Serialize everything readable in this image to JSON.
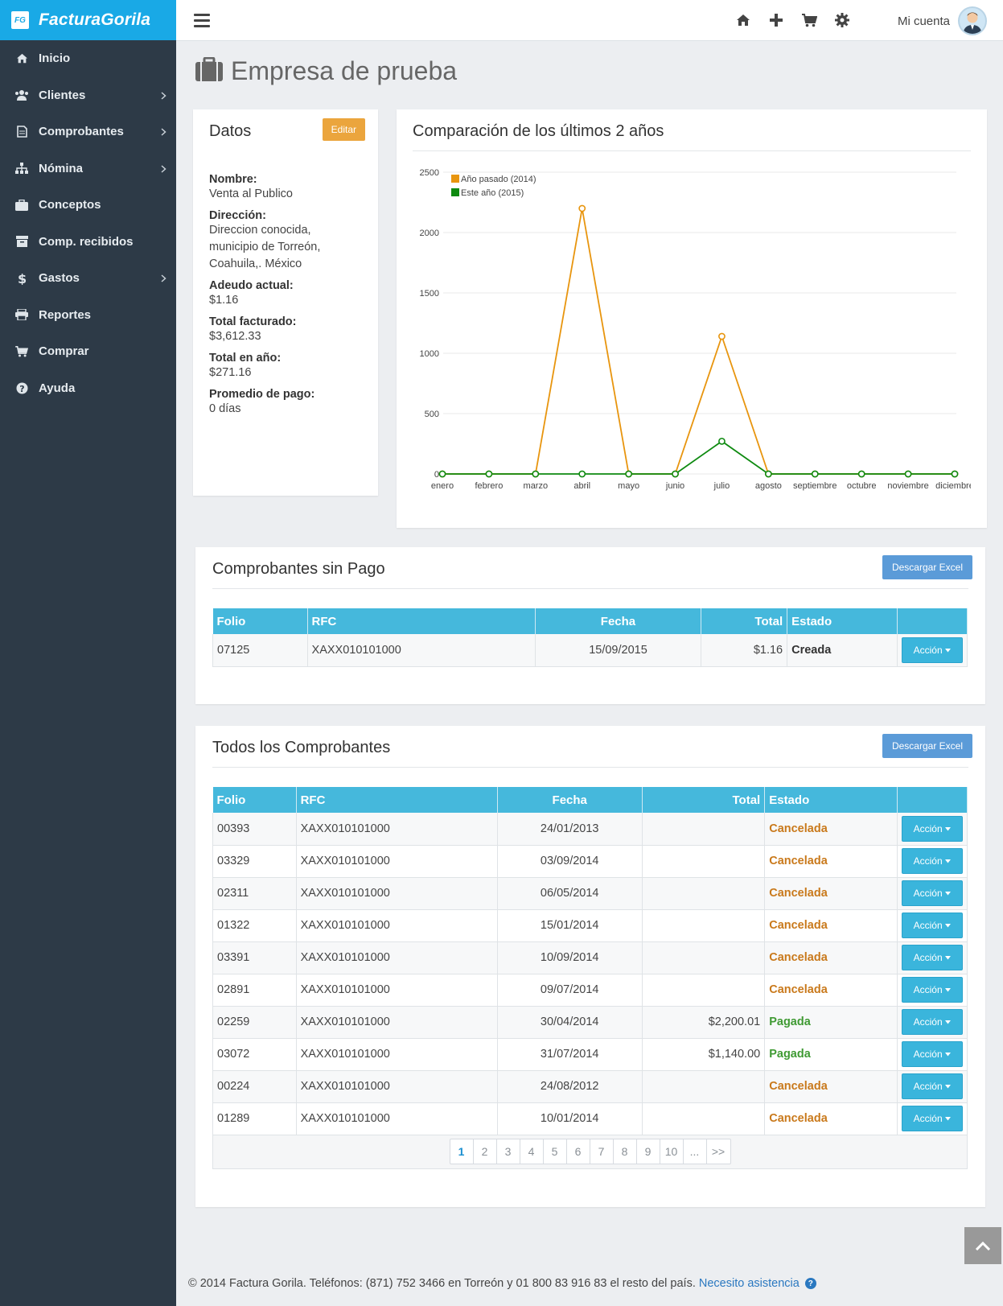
{
  "brand": {
    "logo": "FG",
    "name": "FacturaGorila"
  },
  "sidebar": {
    "items": [
      {
        "label": "Inicio",
        "icon": "home-icon",
        "has_sub": false
      },
      {
        "label": "Clientes",
        "icon": "users-icon",
        "has_sub": true
      },
      {
        "label": "Comprobantes",
        "icon": "document-icon",
        "has_sub": true
      },
      {
        "label": "Nómina",
        "icon": "sitemap-icon",
        "has_sub": true
      },
      {
        "label": "Conceptos",
        "icon": "briefcase-icon",
        "has_sub": false
      },
      {
        "label": "Comp. recibidos",
        "icon": "archive-icon",
        "has_sub": false
      },
      {
        "label": "Gastos",
        "icon": "dollar-icon",
        "has_sub": true
      },
      {
        "label": "Reportes",
        "icon": "print-icon",
        "has_sub": false
      },
      {
        "label": "Comprar",
        "icon": "cart-icon",
        "has_sub": false
      },
      {
        "label": "Ayuda",
        "icon": "help-icon",
        "has_sub": false
      }
    ]
  },
  "topbar": {
    "account_label": "Mi cuenta"
  },
  "page": {
    "title": "Empresa de prueba"
  },
  "datos": {
    "title": "Datos",
    "edit_label": "Editar",
    "fields": [
      {
        "label": "Nombre:",
        "value": "Venta al Publico"
      },
      {
        "label": "Dirección:",
        "value": "Direccion conocida,\nmunicipio de Torreón,\nCoahuila,. México"
      },
      {
        "label": "Adeudo actual:",
        "value": "$1.16"
      },
      {
        "label": "Total facturado:",
        "value": "$3,612.33"
      },
      {
        "label": "Total en año:",
        "value": "$271.16"
      },
      {
        "label": "Promedio de pago:",
        "value": "0 días"
      }
    ]
  },
  "comparacion": {
    "title": "Comparación de los últimos 2 años"
  },
  "chart_data": {
    "type": "line",
    "title": "",
    "categories": [
      "enero",
      "febrero",
      "marzo",
      "abril",
      "mayo",
      "junio",
      "julio",
      "agosto",
      "septiembre",
      "octubre",
      "noviembre",
      "diciembre"
    ],
    "series": [
      {
        "name": "Año pasado (2014)",
        "color": "#e8950e",
        "values": [
          0,
          0,
          0,
          2200,
          0,
          0,
          1140,
          0,
          0,
          0,
          0,
          0
        ]
      },
      {
        "name": "Este año (2015)",
        "color": "#0e8a10",
        "values": [
          0,
          0,
          0,
          0,
          0,
          0,
          271,
          0,
          0,
          0,
          0,
          0
        ]
      }
    ],
    "yticks": [
      0,
      500,
      1000,
      1500,
      2000,
      2500
    ],
    "ylim": [
      0,
      2500
    ],
    "grid": true,
    "legend": "top-left"
  },
  "sinpago": {
    "title": "Comprobantes sin Pago",
    "excel_label": "Descargar Excel",
    "headers": {
      "folio": "Folio",
      "rfc": "RFC",
      "fecha": "Fecha",
      "total": "Total",
      "estado": "Estado"
    },
    "rows": [
      {
        "folio": "07125",
        "rfc": "XAXX010101000",
        "fecha": "15/09/2015",
        "total": "$1.16",
        "estado": "Creada",
        "accion": "Acción"
      }
    ]
  },
  "todos": {
    "title": "Todos los Comprobantes",
    "excel_label": "Descargar Excel",
    "headers": {
      "folio": "Folio",
      "rfc": "RFC",
      "fecha": "Fecha",
      "total": "Total",
      "estado": "Estado"
    },
    "rows": [
      {
        "folio": "00393",
        "rfc": "XAXX010101000",
        "fecha": "24/01/2013",
        "total": "",
        "estado": "Cancelada",
        "accion": "Acción"
      },
      {
        "folio": "03329",
        "rfc": "XAXX010101000",
        "fecha": "03/09/2014",
        "total": "",
        "estado": "Cancelada",
        "accion": "Acción"
      },
      {
        "folio": "02311",
        "rfc": "XAXX010101000",
        "fecha": "06/05/2014",
        "total": "",
        "estado": "Cancelada",
        "accion": "Acción"
      },
      {
        "folio": "01322",
        "rfc": "XAXX010101000",
        "fecha": "15/01/2014",
        "total": "",
        "estado": "Cancelada",
        "accion": "Acción"
      },
      {
        "folio": "03391",
        "rfc": "XAXX010101000",
        "fecha": "10/09/2014",
        "total": "",
        "estado": "Cancelada",
        "accion": "Acción"
      },
      {
        "folio": "02891",
        "rfc": "XAXX010101000",
        "fecha": "09/07/2014",
        "total": "",
        "estado": "Cancelada",
        "accion": "Acción"
      },
      {
        "folio": "02259",
        "rfc": "XAXX010101000",
        "fecha": "30/04/2014",
        "total": "$2,200.01",
        "estado": "Pagada",
        "accion": "Acción"
      },
      {
        "folio": "03072",
        "rfc": "XAXX010101000",
        "fecha": "31/07/2014",
        "total": "$1,140.00",
        "estado": "Pagada",
        "accion": "Acción"
      },
      {
        "folio": "00224",
        "rfc": "XAXX010101000",
        "fecha": "24/08/2012",
        "total": "",
        "estado": "Cancelada",
        "accion": "Acción"
      },
      {
        "folio": "01289",
        "rfc": "XAXX010101000",
        "fecha": "10/01/2014",
        "total": "",
        "estado": "Cancelada",
        "accion": "Acción"
      }
    ],
    "pagination": [
      "1",
      "2",
      "3",
      "4",
      "5",
      "6",
      "7",
      "8",
      "9",
      "10",
      "...",
      ">>"
    ],
    "current_page": "1"
  },
  "footer": {
    "text": "© 2014 Factura Gorila. Teléfonos: (871) 752 3466 en Torreón y 01 800 83 916 83 el resto del país.",
    "link": "Necesito asistencia",
    "help_glyph": "?"
  }
}
